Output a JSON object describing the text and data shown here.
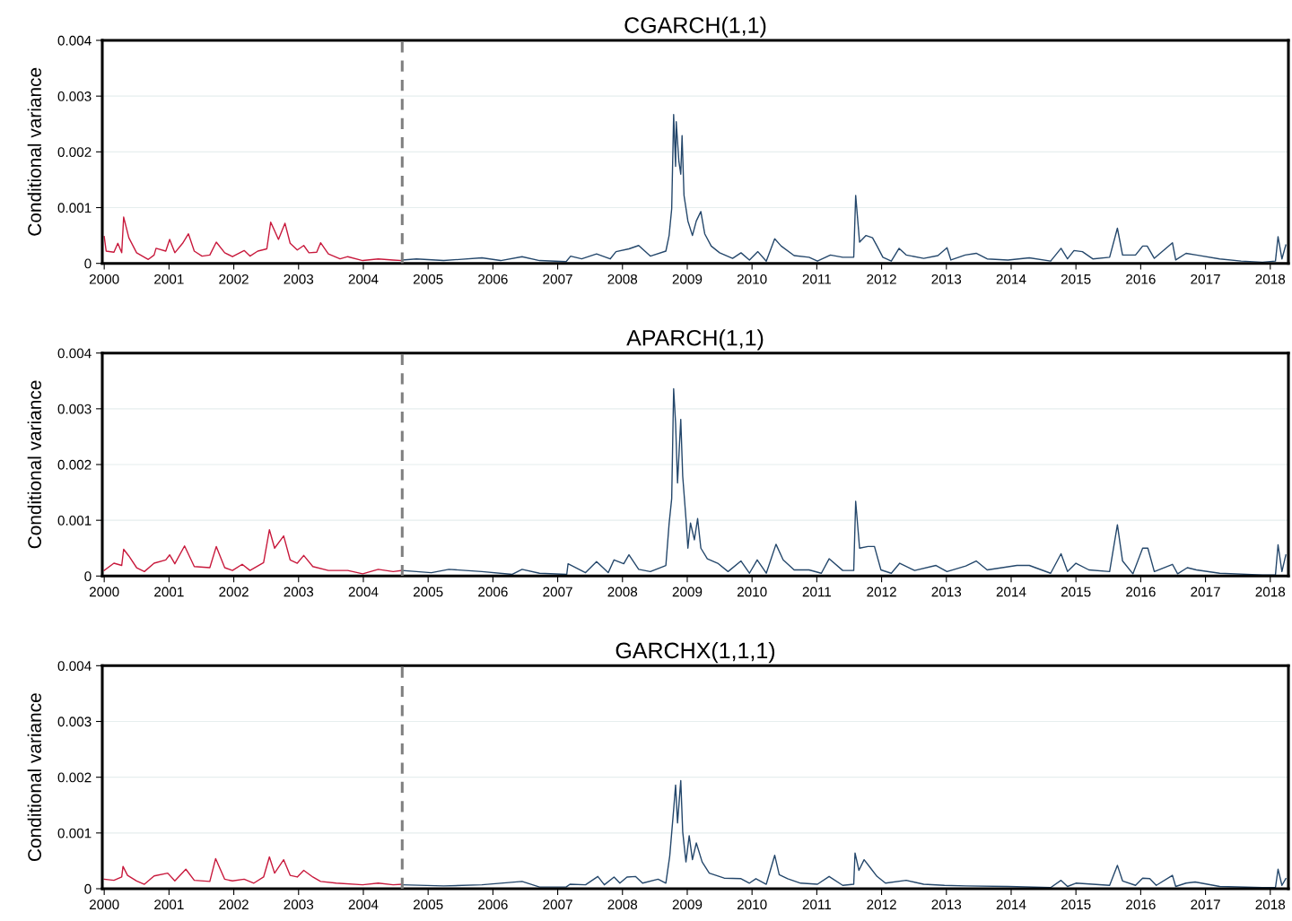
{
  "chart_data": [
    {
      "type": "line",
      "title": "CGARCH(1,1)",
      "ylabel": "Conditional variance",
      "xlim": [
        1999.97,
        2018.28
      ],
      "ylim": [
        0,
        0.004
      ],
      "xticks": [
        2000,
        2001,
        2002,
        2003,
        2004,
        2005,
        2006,
        2007,
        2008,
        2009,
        2010,
        2011,
        2012,
        2013,
        2014,
        2015,
        2016,
        2017,
        2018
      ],
      "yticks": [
        0,
        0.001,
        0.002,
        0.003,
        0.004
      ],
      "grid": "y",
      "ref_lines": [
        {
          "axis": "x",
          "value": 2004.6,
          "color": "#808080",
          "line_style": "dashed"
        }
      ],
      "series": [
        {
          "color": "#c8193c",
          "x": [
            2000.0,
            2000.03,
            2000.15,
            2000.21,
            2000.27,
            2000.3,
            2000.38,
            2000.5,
            2000.68,
            2000.77,
            2000.8,
            2000.95,
            2001.01,
            2001.09,
            2001.21,
            2001.3,
            2001.39,
            2001.51,
            2001.63,
            2001.73,
            2001.86,
            2001.98,
            2002.16,
            2002.25,
            2002.37,
            2002.51,
            2002.57,
            2002.69,
            2002.79,
            2002.87,
            2002.98,
            2003.08,
            2003.16,
            2003.28,
            2003.34,
            2003.46,
            2003.64,
            2003.76,
            2003.99,
            2004.23,
            2004.46,
            2004.6
          ],
          "values": [
            0.00048,
            0.00022,
            0.0002,
            0.00036,
            0.00019,
            0.00083,
            0.00046,
            0.00019,
            7e-05,
            0.00015,
            0.00027,
            0.00022,
            0.00043,
            0.00019,
            0.00036,
            0.00053,
            0.00022,
            0.00013,
            0.00015,
            0.00038,
            0.00019,
            0.00012,
            0.00023,
            0.00013,
            0.00022,
            0.00026,
            0.00074,
            0.00043,
            0.00072,
            0.00036,
            0.00024,
            0.00032,
            0.00019,
            0.0002,
            0.00037,
            0.00017,
            8e-05,
            0.00012,
            5e-05,
            8e-05,
            6e-05,
            5e-05
          ]
        },
        {
          "color": "#24476b",
          "x": [
            2004.6,
            2004.82,
            2005.24,
            2005.83,
            2006.12,
            2006.45,
            2006.72,
            2007.13,
            2007.2,
            2007.37,
            2007.6,
            2007.81,
            2007.9,
            2008.1,
            2008.25,
            2008.43,
            2008.67,
            2008.72,
            2008.76,
            2008.79,
            2008.82,
            2008.83,
            2008.87,
            2008.9,
            2008.92,
            2008.95,
            2009.01,
            2009.08,
            2009.14,
            2009.21,
            2009.27,
            2009.37,
            2009.5,
            2009.7,
            2009.83,
            2009.96,
            2010.09,
            2010.22,
            2010.35,
            2010.45,
            2010.65,
            2010.88,
            2011.01,
            2011.21,
            2011.4,
            2011.57,
            2011.6,
            2011.66,
            2011.76,
            2011.86,
            2011.93,
            2012.02,
            2012.15,
            2012.27,
            2012.38,
            2012.65,
            2012.87,
            2013.01,
            2013.07,
            2013.29,
            2013.46,
            2013.63,
            2013.95,
            2014.28,
            2014.61,
            2014.77,
            2014.87,
            2014.97,
            2015.1,
            2015.26,
            2015.52,
            2015.64,
            2015.72,
            2015.92,
            2016.03,
            2016.1,
            2016.21,
            2016.49,
            2016.54,
            2016.7,
            2016.86,
            2017.22,
            2017.55,
            2017.88,
            2018.08,
            2018.12,
            2018.18,
            2018.24
          ],
          "values": [
            6e-05,
            8e-05,
            5e-05,
            0.0001,
            5e-05,
            0.00012,
            5e-05,
            3e-05,
            0.00013,
            8e-05,
            0.00017,
            8e-05,
            0.00021,
            0.00026,
            0.00032,
            0.00013,
            0.00022,
            0.0005,
            0.00098,
            0.00267,
            0.00174,
            0.00254,
            0.00184,
            0.0016,
            0.00229,
            0.00122,
            0.00076,
            0.0005,
            0.00076,
            0.00093,
            0.00053,
            0.00031,
            0.00019,
            9e-05,
            0.00019,
            6e-05,
            0.00021,
            4e-05,
            0.00044,
            0.00031,
            0.00014,
            0.00011,
            4e-05,
            0.00015,
            0.00011,
            0.00011,
            0.00122,
            0.00038,
            0.0005,
            0.00046,
            0.00031,
            0.00011,
            4e-05,
            0.00027,
            0.00015,
            9e-05,
            0.00014,
            0.00028,
            6e-05,
            0.00015,
            0.00018,
            8e-05,
            6e-05,
            0.0001,
            4e-05,
            0.00027,
            8e-05,
            0.00023,
            0.00021,
            8e-05,
            0.00011,
            0.00063,
            0.00015,
            0.00015,
            0.00031,
            0.00031,
            9e-05,
            0.00037,
            6e-05,
            0.00018,
            0.00015,
            8e-05,
            4e-05,
            2e-05,
            4e-05,
            0.00048,
            8e-05,
            0.00033
          ]
        }
      ]
    },
    {
      "type": "line",
      "title": "APARCH(1,1)",
      "ylabel": "Conditional variance",
      "xlim": [
        1999.97,
        2018.28
      ],
      "ylim": [
        0,
        0.004
      ],
      "xticks": [
        2000,
        2001,
        2002,
        2003,
        2004,
        2005,
        2006,
        2007,
        2008,
        2009,
        2010,
        2011,
        2012,
        2013,
        2014,
        2015,
        2016,
        2017,
        2018
      ],
      "yticks": [
        0,
        0.001,
        0.002,
        0.003,
        0.004
      ],
      "grid": "y",
      "ref_lines": [
        {
          "axis": "x",
          "value": 2004.6,
          "color": "#808080",
          "line_style": "dashed"
        }
      ],
      "series": [
        {
          "color": "#c8193c",
          "x": [
            2000.0,
            2000.15,
            2000.27,
            2000.3,
            2000.38,
            2000.5,
            2000.62,
            2000.77,
            2000.95,
            2001.01,
            2001.09,
            2001.24,
            2001.39,
            2001.63,
            2001.73,
            2001.86,
            2001.98,
            2002.13,
            2002.25,
            2002.46,
            2002.55,
            2002.63,
            2002.77,
            2002.87,
            2002.98,
            2003.08,
            2003.22,
            2003.46,
            2003.76,
            2003.99,
            2004.23,
            2004.46,
            2004.6
          ],
          "values": [
            0.0001,
            0.00023,
            0.00019,
            0.00048,
            0.00036,
            0.00015,
            8e-05,
            0.00023,
            0.00029,
            0.00038,
            0.00022,
            0.00054,
            0.00017,
            0.00015,
            0.00053,
            0.00015,
            0.0001,
            0.00021,
            0.0001,
            0.00024,
            0.00083,
            0.0005,
            0.00072,
            0.00029,
            0.00023,
            0.00037,
            0.00017,
            0.0001,
            0.0001,
            4e-05,
            0.00012,
            8e-05,
            0.0001
          ]
        },
        {
          "color": "#24476b",
          "x": [
            2004.6,
            2005.05,
            2005.32,
            2005.83,
            2006.3,
            2006.45,
            2006.72,
            2007.14,
            2007.16,
            2007.43,
            2007.6,
            2007.78,
            2007.87,
            2008.02,
            2008.1,
            2008.25,
            2008.43,
            2008.67,
            2008.72,
            2008.76,
            2008.79,
            2008.82,
            2008.85,
            2008.9,
            2008.93,
            2008.98,
            2009.01,
            2009.05,
            2009.11,
            2009.16,
            2009.21,
            2009.31,
            2009.47,
            2009.63,
            2009.83,
            2009.96,
            2010.08,
            2010.22,
            2010.37,
            2010.48,
            2010.65,
            2010.88,
            2011.07,
            2011.19,
            2011.4,
            2011.57,
            2011.6,
            2011.66,
            2011.79,
            2011.89,
            2011.99,
            2012.15,
            2012.28,
            2012.51,
            2012.84,
            2013.01,
            2013.3,
            2013.46,
            2013.63,
            2014.09,
            2014.28,
            2014.61,
            2014.77,
            2014.87,
            2015.0,
            2015.2,
            2015.52,
            2015.64,
            2015.72,
            2015.88,
            2016.03,
            2016.11,
            2016.21,
            2016.49,
            2016.57,
            2016.72,
            2016.86,
            2017.22,
            2017.88,
            2018.08,
            2018.12,
            2018.18,
            2018.24
          ],
          "values": [
            0.0001,
            6e-05,
            0.00012,
            8e-05,
            3e-05,
            0.00012,
            5e-05,
            3e-05,
            0.00022,
            6e-05,
            0.00026,
            6e-05,
            0.00029,
            0.00022,
            0.00038,
            0.00012,
            8e-05,
            0.00019,
            0.00094,
            0.00139,
            0.00336,
            0.00274,
            0.00167,
            0.00281,
            0.00179,
            0.00103,
            0.0005,
            0.00095,
            0.00065,
            0.00103,
            0.0005,
            0.00031,
            0.00023,
            8e-05,
            0.00027,
            5e-05,
            0.00029,
            5e-05,
            0.00057,
            0.00029,
            0.00011,
            0.00011,
            5e-05,
            0.00031,
            0.0001,
            0.0001,
            0.00134,
            0.0005,
            0.00053,
            0.00053,
            0.00011,
            5e-05,
            0.00023,
            0.0001,
            0.00019,
            8e-05,
            0.00018,
            0.00027,
            0.00011,
            0.00019,
            0.00019,
            5e-05,
            0.0004,
            8e-05,
            0.00023,
            0.00011,
            8e-05,
            0.00092,
            0.00027,
            4e-05,
            0.0005,
            0.0005,
            8e-05,
            0.00021,
            4e-05,
            0.00015,
            0.00011,
            5e-05,
            2e-05,
            2e-05,
            0.00056,
            8e-05,
            0.00038
          ]
        }
      ]
    },
    {
      "type": "line",
      "title": "GARCHX(1,1,1)",
      "ylabel": "Conditional variance",
      "xlim": [
        1999.97,
        2018.28
      ],
      "ylim": [
        0,
        0.004
      ],
      "xticks": [
        2000,
        2001,
        2002,
        2003,
        2004,
        2005,
        2006,
        2007,
        2008,
        2009,
        2010,
        2011,
        2012,
        2013,
        2014,
        2015,
        2016,
        2017,
        2018
      ],
      "yticks": [
        0,
        0.001,
        0.002,
        0.003,
        0.004
      ],
      "grid": "y",
      "ref_lines": [
        {
          "axis": "x",
          "value": 2004.6,
          "color": "#808080",
          "line_style": "dashed"
        }
      ],
      "series": [
        {
          "color": "#c8193c",
          "x": [
            2000.0,
            2000.15,
            2000.27,
            2000.29,
            2000.36,
            2000.5,
            2000.62,
            2000.77,
            2000.98,
            2001.09,
            2001.26,
            2001.39,
            2001.63,
            2001.72,
            2001.86,
            2001.98,
            2002.16,
            2002.31,
            2002.46,
            2002.55,
            2002.63,
            2002.77,
            2002.87,
            2002.98,
            2003.08,
            2003.22,
            2003.34,
            2003.58,
            2003.99,
            2004.23,
            2004.46,
            2004.6
          ],
          "values": [
            0.00017,
            0.00015,
            0.00021,
            0.0004,
            0.00024,
            0.00014,
            8e-05,
            0.00023,
            0.00028,
            0.00014,
            0.00035,
            0.00015,
            0.00013,
            0.00054,
            0.00017,
            0.00014,
            0.00017,
            0.0001,
            0.00021,
            0.00057,
            0.00028,
            0.00052,
            0.00024,
            0.00021,
            0.00033,
            0.00021,
            0.00013,
            0.0001,
            7e-05,
            0.0001,
            7e-05,
            8e-05
          ]
        },
        {
          "color": "#24476b",
          "x": [
            2004.6,
            2005.24,
            2005.83,
            2006.45,
            2006.72,
            2007.13,
            2007.19,
            2007.43,
            2007.62,
            2007.72,
            2007.87,
            2007.96,
            2008.07,
            2008.2,
            2008.31,
            2008.55,
            2008.67,
            2008.73,
            2008.79,
            2008.82,
            2008.85,
            2008.9,
            2008.93,
            2008.98,
            2009.03,
            2009.08,
            2009.14,
            2009.23,
            2009.34,
            2009.57,
            2009.83,
            2009.96,
            2010.06,
            2010.22,
            2010.35,
            2010.42,
            2010.55,
            2010.75,
            2011.01,
            2011.19,
            2011.4,
            2011.57,
            2011.59,
            2011.65,
            2011.73,
            2011.83,
            2011.93,
            2012.06,
            2012.38,
            2012.65,
            2012.97,
            2013.3,
            2013.95,
            2014.61,
            2014.77,
            2014.87,
            2015.0,
            2015.52,
            2015.64,
            2015.72,
            2015.92,
            2016.03,
            2016.14,
            2016.24,
            2016.49,
            2016.54,
            2016.7,
            2016.84,
            2017.22,
            2017.88,
            2018.08,
            2018.12,
            2018.18,
            2018.24
          ],
          "values": [
            7e-05,
            5e-05,
            7e-05,
            0.00013,
            3e-05,
            3e-05,
            8e-05,
            7e-05,
            0.00022,
            7e-05,
            0.00021,
            0.0001,
            0.00021,
            0.00022,
            0.0001,
            0.00017,
            0.0001,
            0.00059,
            0.00142,
            0.00186,
            0.00118,
            0.00194,
            0.00102,
            0.00048,
            0.00095,
            0.00052,
            0.00082,
            0.00048,
            0.00028,
            0.00019,
            0.00018,
            0.0001,
            0.00018,
            8e-05,
            0.0006,
            0.00025,
            0.00018,
            0.0001,
            8e-05,
            0.00022,
            6e-05,
            8e-05,
            0.00064,
            0.00033,
            0.00052,
            0.00037,
            0.00022,
            0.0001,
            0.00015,
            8e-05,
            6e-05,
            5e-05,
            4e-05,
            2e-05,
            0.00015,
            4e-05,
            0.0001,
            6e-05,
            0.00042,
            0.00014,
            6e-05,
            0.00019,
            0.00018,
            6e-05,
            0.00024,
            4e-05,
            0.0001,
            0.00012,
            4e-05,
            2e-05,
            2e-05,
            0.00035,
            6e-05,
            0.00018
          ]
        }
      ]
    }
  ]
}
